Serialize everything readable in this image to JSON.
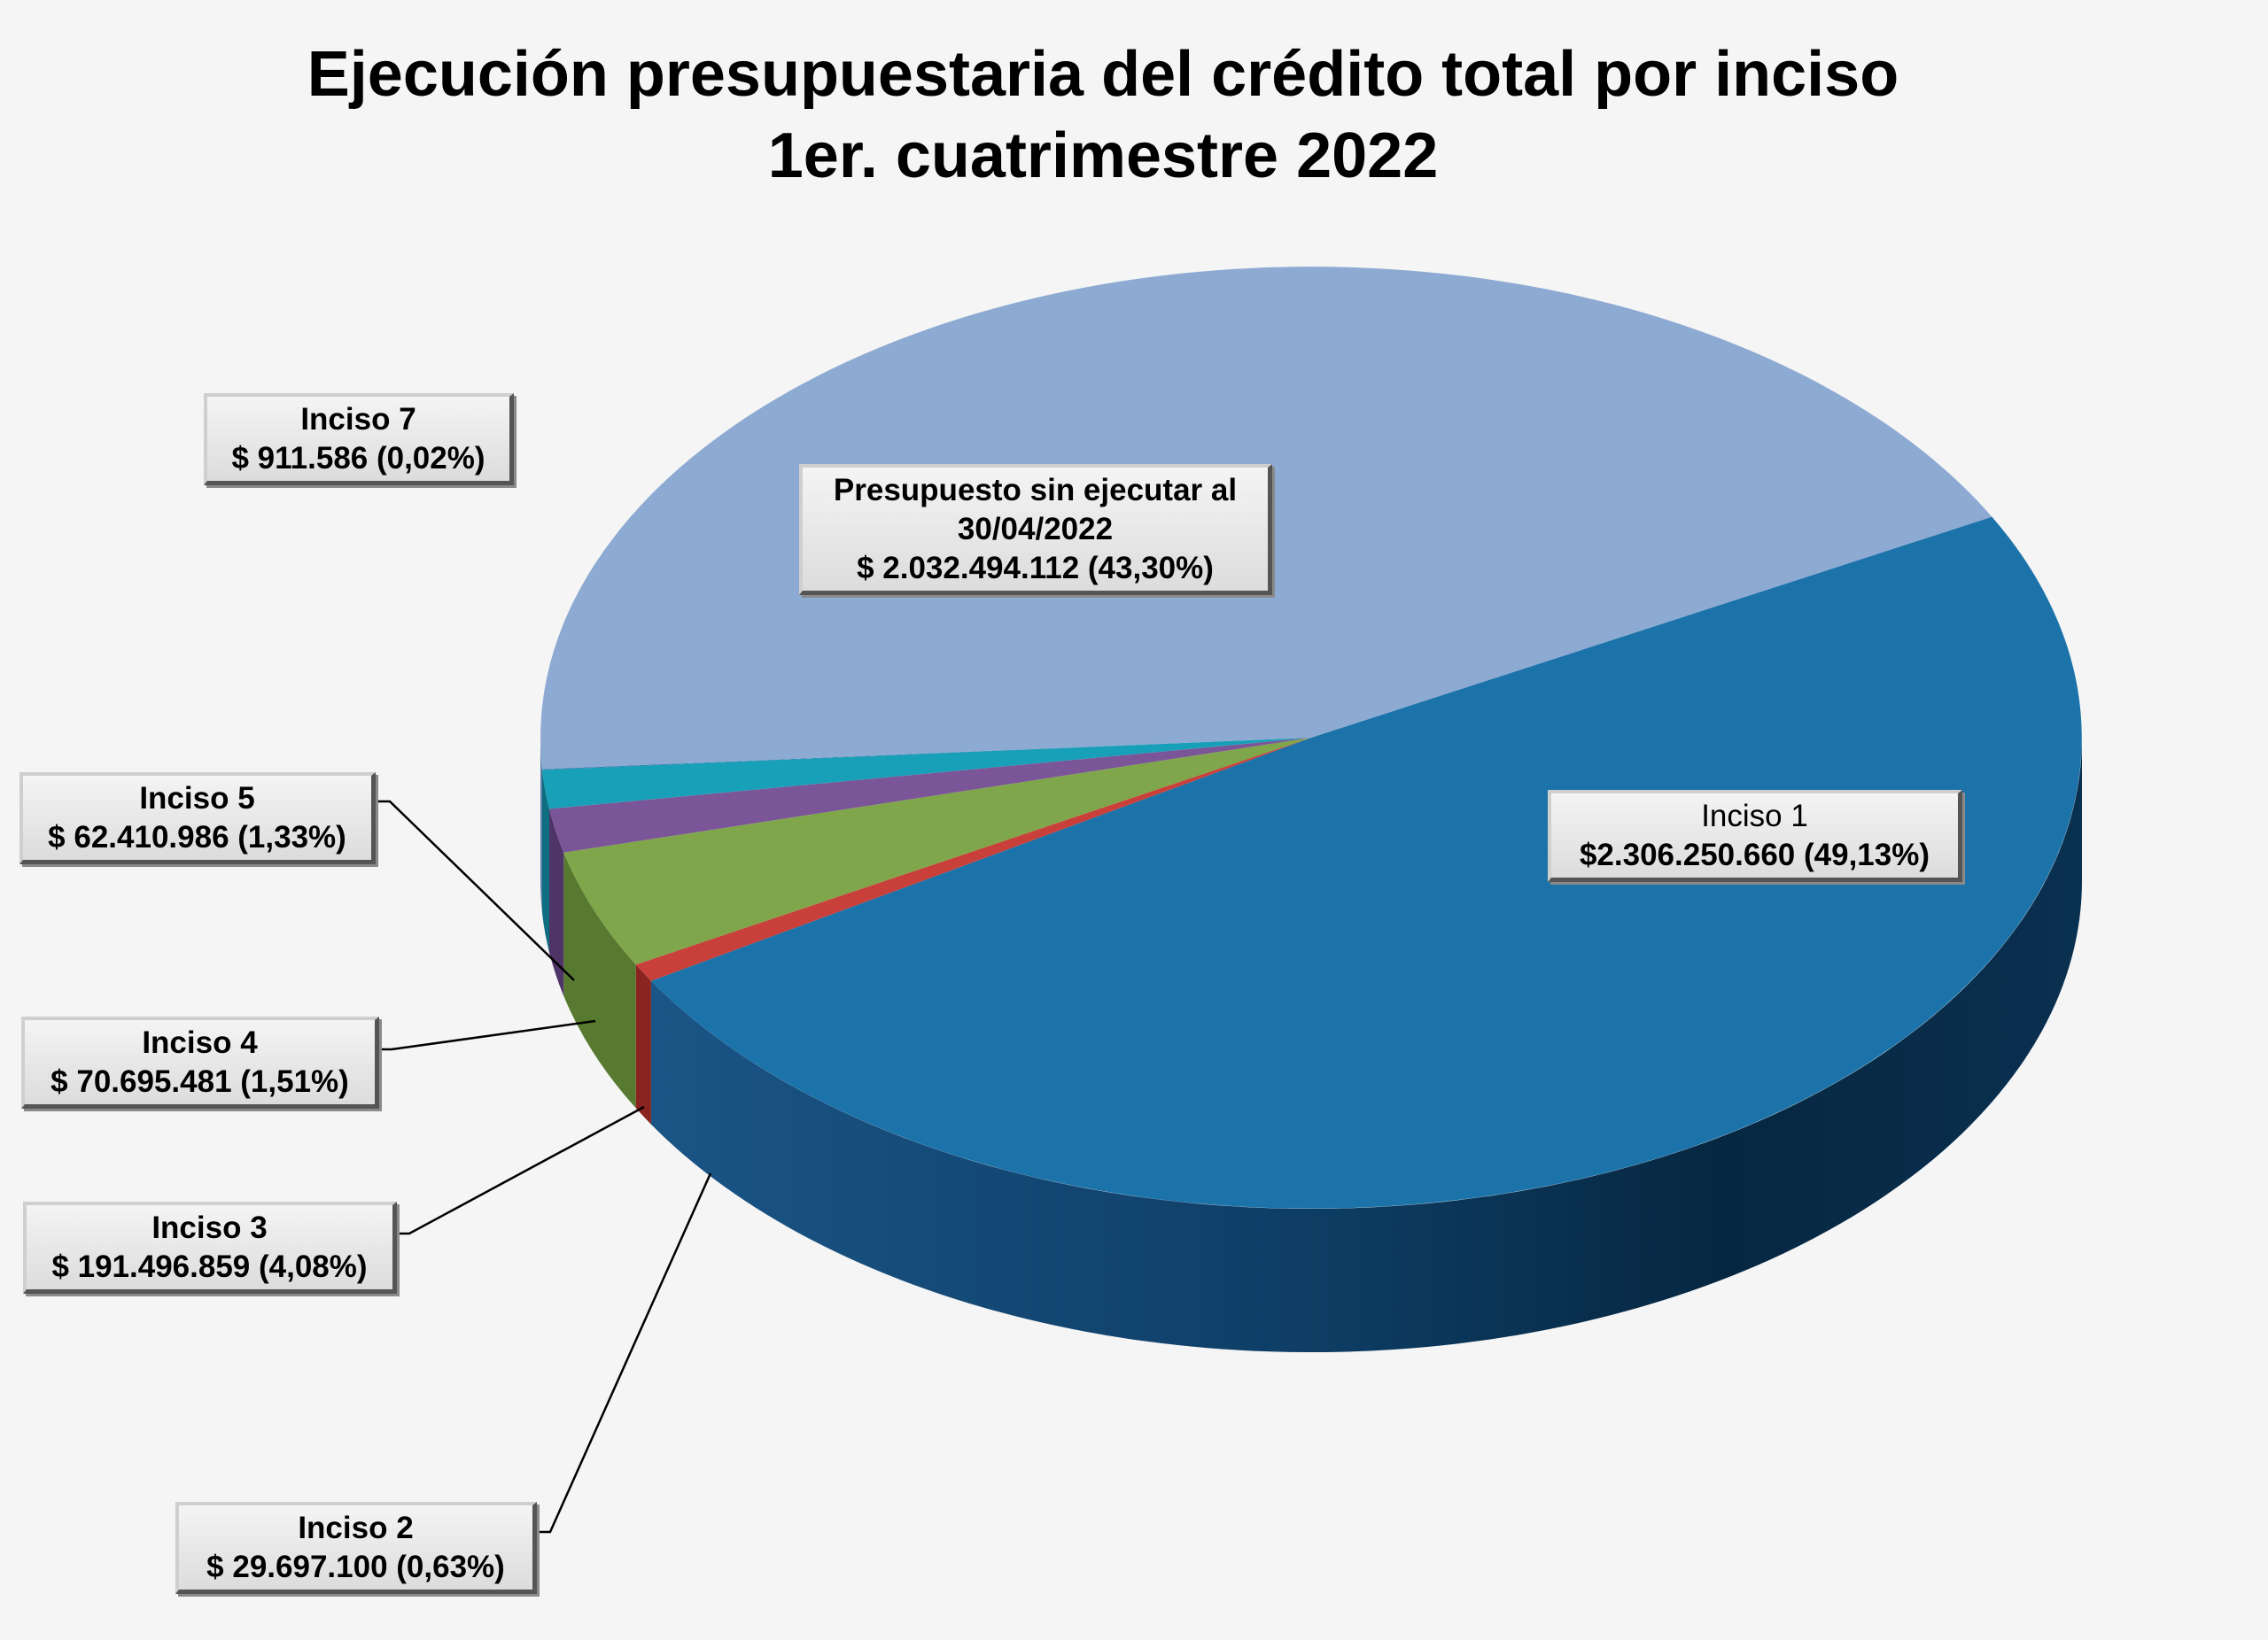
{
  "chart_data": {
    "type": "pie",
    "title": "Ejecución presupuestaria del crédito total por inciso",
    "subtitle": "1er. cuatrimestre 2022",
    "slices": [
      {
        "key": "inciso1",
        "label_line1": "Inciso 1",
        "value_text": "$2.306.250.660 (49,13%)",
        "value": 2306250660,
        "percent": 49.13,
        "color": "#1b73aa",
        "side_color": "#0f3d62"
      },
      {
        "key": "inciso2",
        "label_line1": "Inciso 2",
        "value_text": "$ 29.697.100 (0,63%)",
        "value": 29697100,
        "percent": 0.63,
        "color": "#c9403a",
        "side_color": "#8a2420"
      },
      {
        "key": "inciso3",
        "label_line1": "Inciso 3",
        "value_text": "$ 191.496.859 (4,08%)",
        "value": 191496859,
        "percent": 4.08,
        "color": "#80a64b",
        "side_color": "#587a30"
      },
      {
        "key": "inciso4",
        "label_line1": "Inciso 4",
        "value_text": "$ 70.695.481 (1,51%)",
        "value": 70695481,
        "percent": 1.51,
        "color": "#7a5699",
        "side_color": "#4f3468"
      },
      {
        "key": "inciso5",
        "label_line1": "Inciso 5",
        "value_text": "$ 62.410.986 (1,33%)",
        "value": 62410986,
        "percent": 1.33,
        "color": "#18a0b8",
        "side_color": "#0d6f80"
      },
      {
        "key": "inciso7",
        "label_line1": "Inciso 7",
        "value_text": "$ 911.586 (0,02%)",
        "value": 911586,
        "percent": 0.02,
        "color": "#3a6fa8",
        "side_color": "#24466c"
      },
      {
        "key": "sin_ejecutar",
        "label_line1": "Presupuesto sin ejecutar al",
        "label_line2": "30/04/2022",
        "value_text": "$ 2.032.494.112 (43,30%)",
        "value": 2032494112,
        "percent": 43.3,
        "color": "#8daad3",
        "side_color": "#5d7ea8"
      }
    ]
  }
}
